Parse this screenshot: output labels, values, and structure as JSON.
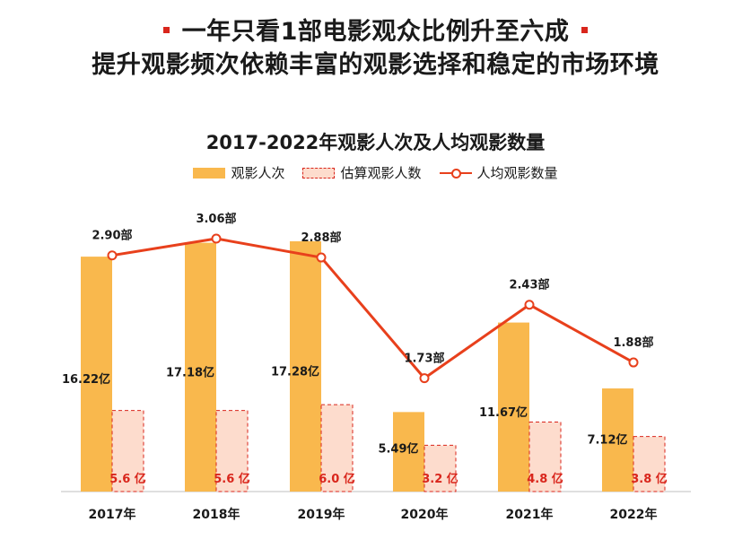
{
  "headline": {
    "line1": "一年只看1部电影观众比例升至六成",
    "line2": "提升观影频次依赖丰富的观影选择和稳定的市场环境"
  },
  "colors": {
    "bar": "#f9b84d",
    "estimate_fill": "#fddccd",
    "estimate_border": "#d9261c",
    "line": "#e8401c",
    "accent": "#d9261c",
    "text": "#1a1a1a"
  },
  "chart_data": {
    "type": "bar",
    "title": "2017-2022年观影人次及人均观影数量",
    "categories": [
      "2017年",
      "2018年",
      "2019年",
      "2020年",
      "2021年",
      "2022年"
    ],
    "series": [
      {
        "name": "观影人次",
        "kind": "bar",
        "unit": "亿",
        "values": [
          16.22,
          17.18,
          17.28,
          5.49,
          11.67,
          7.12
        ],
        "labels": [
          "16.22亿",
          "17.18亿",
          "17.28亿",
          "5.49亿",
          "11.67亿",
          "7.12亿"
        ]
      },
      {
        "name": "估算观影人数",
        "kind": "bar-dashed",
        "unit": "亿",
        "values": [
          5.6,
          5.6,
          6.0,
          3.2,
          4.8,
          3.8
        ],
        "labels": [
          "5.6 亿",
          "5.6 亿",
          "6.0 亿",
          "3.2 亿",
          "4.8 亿",
          "3.8 亿"
        ]
      },
      {
        "name": "人均观影数量",
        "kind": "line",
        "unit": "部",
        "values": [
          2.9,
          3.06,
          2.88,
          1.73,
          2.43,
          1.88
        ],
        "labels": [
          "2.90部",
          "3.06部",
          "2.88部",
          "1.73部",
          "2.43部",
          "1.88部"
        ]
      }
    ],
    "bar_axis": {
      "min": 0,
      "max": 17.28
    },
    "line_axis": {
      "min": 0.0,
      "max": 3.06
    },
    "grid": false,
    "legend_position": "top-center"
  }
}
